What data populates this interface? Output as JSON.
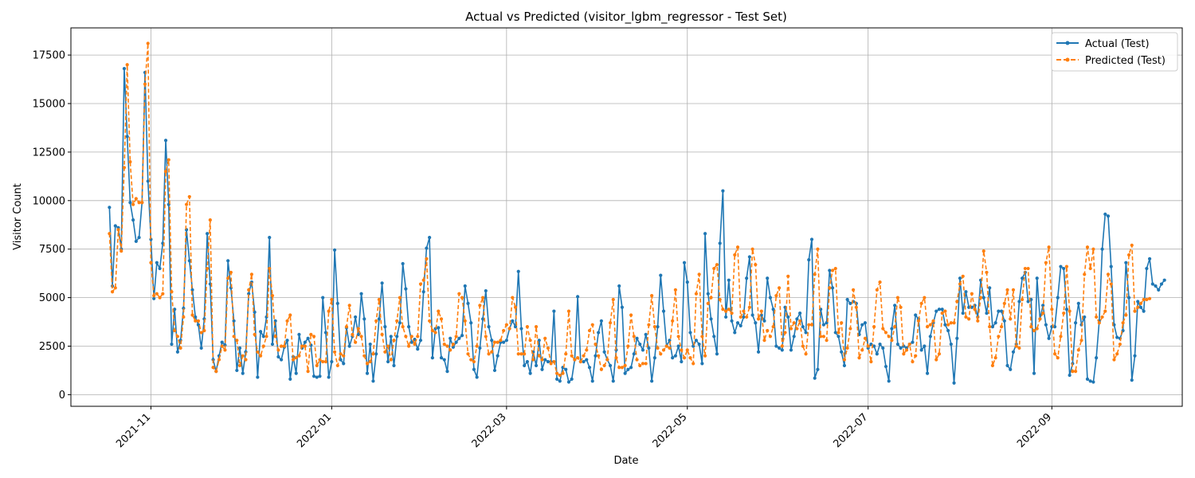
{
  "chart_data": {
    "type": "line",
    "title": "Actual vs Predicted (visitor_lgbm_regressor - Test Set)",
    "xlabel": "Date",
    "ylabel": "Visitor Count",
    "x_range": [
      "2021-10-05",
      "2022-10-15"
    ],
    "ylim": [
      -600,
      18900
    ],
    "grid": true,
    "legend_position": "upper right",
    "x_ticks": [
      "2021-11",
      "2022-01",
      "2022-03",
      "2022-05",
      "2022-07",
      "2022-09"
    ],
    "y_ticks": [
      "0",
      "2500",
      "5000",
      "7500",
      "10000",
      "12500",
      "15000",
      "17500"
    ],
    "start_date": "2021-10-18",
    "series": [
      {
        "name": "Actual (Test)",
        "color": "#1f77b4",
        "style": "solid",
        "marker": "circle",
        "values": [
          9650,
          5600,
          8700,
          8600,
          7500,
          16800,
          13300,
          9900,
          9000,
          7900,
          8100,
          9900,
          16600,
          11000,
          8000,
          4950,
          6800,
          6500,
          7800,
          13100,
          9800,
          2600,
          4400,
          2200,
          2800,
          4450,
          8500,
          6900,
          5400,
          4000,
          3600,
          2400,
          3900,
          8300,
          5700,
          1800,
          1200,
          2000,
          2700,
          2550,
          6900,
          5500,
          3800,
          1250,
          2400,
          1100,
          2200,
          5200,
          5800,
          4250,
          900,
          3250,
          3000,
          4000,
          8100,
          2600,
          3800,
          1950,
          1800,
          2450,
          2800,
          800,
          1950,
          1100,
          3100,
          2400,
          2700,
          2900,
          2550,
          950,
          900,
          950,
          5000,
          3200,
          900,
          1700,
          7450,
          4700,
          1800,
          1600,
          3450,
          2500,
          3000,
          4000,
          3100,
          5200,
          3900,
          1100,
          2600,
          700,
          2100,
          3900,
          5750,
          3500,
          1700,
          3000,
          1500,
          3000,
          3700,
          6750,
          5450,
          3500,
          2700,
          2850,
          2350,
          2800,
          5300,
          7550,
          8100,
          1900,
          3400,
          3450,
          1900,
          1800,
          1200,
          2900,
          2450,
          2700,
          2900,
          3050,
          5600,
          4700,
          3700,
          1300,
          900,
          2400,
          3900,
          5350,
          3500,
          2800,
          1250,
          2000,
          2700,
          2700,
          2800,
          3400,
          3800,
          3500,
          6350,
          3400,
          1500,
          1700,
          1100,
          2200,
          1500,
          2800,
          1300,
          1800,
          1700,
          1700,
          4300,
          800,
          700,
          1400,
          1300,
          650,
          800,
          1800,
          5050,
          1700,
          1700,
          1800,
          1400,
          700,
          2000,
          3200,
          3800,
          2200,
          1800,
          1500,
          700,
          2300,
          5600,
          4500,
          1100,
          1300,
          1400,
          2100,
          2900,
          2600,
          2300,
          3100,
          2400,
          700,
          1900,
          3500,
          6150,
          4300,
          2500,
          2800,
          1900,
          2000,
          2500,
          1700,
          6800,
          5800,
          3200,
          2500,
          2800,
          2600,
          1600,
          8300,
          5200,
          3900,
          3000,
          2100,
          7800,
          10500,
          4000,
          5900,
          3800,
          3200,
          3700,
          3550,
          4000,
          6000,
          7100,
          4100,
          3700,
          2200,
          4100,
          3800,
          6000,
          5000,
          4400,
          2500,
          2400,
          2300,
          4500,
          4000,
          2300,
          3000,
          3900,
          4200,
          3500,
          3200,
          6950,
          8000,
          850,
          1300,
          4400,
          3600,
          3700,
          6400,
          5500,
          3200,
          3000,
          2200,
          1500,
          4900,
          4700,
          4800,
          4700,
          3100,
          3600,
          3700,
          2400,
          2600,
          2500,
          2100,
          2600,
          2400,
          1450,
          700,
          3400,
          4600,
          2600,
          2400,
          2500,
          2400,
          2600,
          2700,
          4100,
          3900,
          2300,
          2500,
          1100,
          3000,
          3700,
          4300,
          4400,
          4400,
          3600,
          3300,
          2600,
          600,
          2900,
          6000,
          4200,
          5300,
          4500,
          4500,
          4600,
          4000,
          5900,
          5000,
          4200,
          5500,
          3500,
          3700,
          4300,
          4300,
          3800,
          1500,
          1300,
          2200,
          2600,
          4800,
          6000,
          6300,
          4800,
          4900,
          1100,
          6000,
          3900,
          4600,
          3600,
          2900,
          3500,
          3500,
          5000,
          6600,
          6500,
          4400,
          1000,
          1600,
          3700,
          4700,
          3600,
          4000,
          800,
          700,
          650,
          1900,
          3800,
          7500,
          9300,
          9200,
          6600,
          3600,
          2950,
          2900,
          3300,
          6800,
          5000,
          750,
          2000,
          4800,
          4500,
          4300,
          6500,
          7000,
          5700,
          5600,
          5400,
          5700,
          5900
        ]
      },
      {
        "name": "Predicted (Test)",
        "color": "#ff7f0e",
        "style": "dashed",
        "marker": "circle",
        "values": [
          8300,
          5300,
          5500,
          8500,
          7400,
          11700,
          17000,
          12000,
          9800,
          10100,
          9900,
          9900,
          16000,
          18100,
          6800,
          5100,
          5200,
          5000,
          5200,
          11500,
          12100,
          5300,
          3300,
          3000,
          2400,
          4000,
          9800,
          10200,
          4100,
          3800,
          3800,
          3200,
          3300,
          6500,
          9000,
          1400,
          1200,
          1800,
          2500,
          2300,
          6000,
          6300,
          3000,
          2800,
          1500,
          2000,
          1800,
          5400,
          6200,
          3100,
          2200,
          2000,
          2500,
          3000,
          6500,
          5100,
          3000,
          2300,
          2500,
          2500,
          3800,
          4100,
          1800,
          1900,
          2000,
          2500,
          2500,
          1200,
          3100,
          3000,
          1500,
          1800,
          1700,
          1700,
          4300,
          4900,
          2200,
          1500,
          2100,
          2000,
          3500,
          4600,
          3100,
          2700,
          3400,
          3000,
          2000,
          1600,
          1700,
          2100,
          3800,
          4900,
          3100,
          2200,
          2500,
          1800,
          2800,
          3800,
          5000,
          3500,
          3000,
          2500,
          3000,
          2600,
          3000,
          5700,
          5900,
          7000,
          3800,
          3300,
          3200,
          4300,
          3900,
          2600,
          2500,
          2300,
          2600,
          3000,
          5200,
          5000,
          3800,
          2100,
          1800,
          1700,
          2500,
          4600,
          5000,
          3000,
          2100,
          2200,
          2700,
          2700,
          2800,
          3300,
          3600,
          3400,
          5000,
          4500,
          2100,
          2100,
          2100,
          3500,
          2800,
          1800,
          3500,
          2000,
          1800,
          2900,
          2400,
          1600,
          1700,
          1100,
          1000,
          1100,
          2100,
          4300,
          2000,
          1800,
          1900,
          1700,
          2000,
          2300,
          3300,
          3600,
          2600,
          2000,
          1300,
          1500,
          1800,
          3700,
          4900,
          1900,
          1400,
          1400,
          1500,
          2500,
          4100,
          3000,
          1800,
          1500,
          1600,
          1600,
          3600,
          5100,
          3500,
          2400,
          2100,
          2300,
          2500,
          2400,
          3800,
          5400,
          3000,
          2300,
          1900,
          2300,
          1900,
          1600,
          5200,
          6200,
          3000,
          2000,
          4700,
          5000,
          6500,
          6700,
          4900,
          4400,
          4300,
          4400,
          4200,
          7200,
          7600,
          4000,
          4300,
          4000,
          4500,
          7500,
          6700,
          3900,
          4300,
          2800,
          3300,
          3000,
          3500,
          5100,
          5500,
          2500,
          3200,
          6100,
          3400,
          3700,
          3400,
          3800,
          2500,
          2100,
          3600,
          3600,
          6200,
          7500,
          3000,
          3000,
          2800,
          5500,
          6400,
          6500,
          3200,
          3700,
          1800,
          2400,
          3400,
          5400,
          4500,
          1900,
          2300,
          2900,
          2500,
          1700,
          3500,
          5400,
          5800,
          3400,
          3200,
          3000,
          2800,
          3500,
          5000,
          4500,
          2100,
          2300,
          2600,
          1700,
          2000,
          3800,
          4700,
          5000,
          3500,
          3600,
          3800,
          1800,
          2100,
          4200,
          4300,
          3600,
          3700,
          3700,
          4800,
          5700,
          6100,
          4000,
          3900,
          5200,
          4400,
          3800,
          5000,
          7400,
          6300,
          3500,
          1500,
          1900,
          3000,
          3500,
          4700,
          5400,
          3900,
          5400,
          2500,
          2400,
          4900,
          6500,
          6500,
          3500,
          3300,
          3400,
          3900,
          4200,
          6800,
          7600,
          4400,
          2100,
          1900,
          3000,
          4200,
          6600,
          4300,
          1200,
          1200,
          2300,
          2800,
          6200,
          7600,
          6500,
          7500,
          4000,
          3700,
          4000,
          4300,
          6200,
          5700,
          1800,
          2100,
          2600,
          3700,
          4100,
          7200,
          7700,
          4300,
          4500,
          4700,
          4900,
          4900,
          4950
        ]
      }
    ]
  }
}
